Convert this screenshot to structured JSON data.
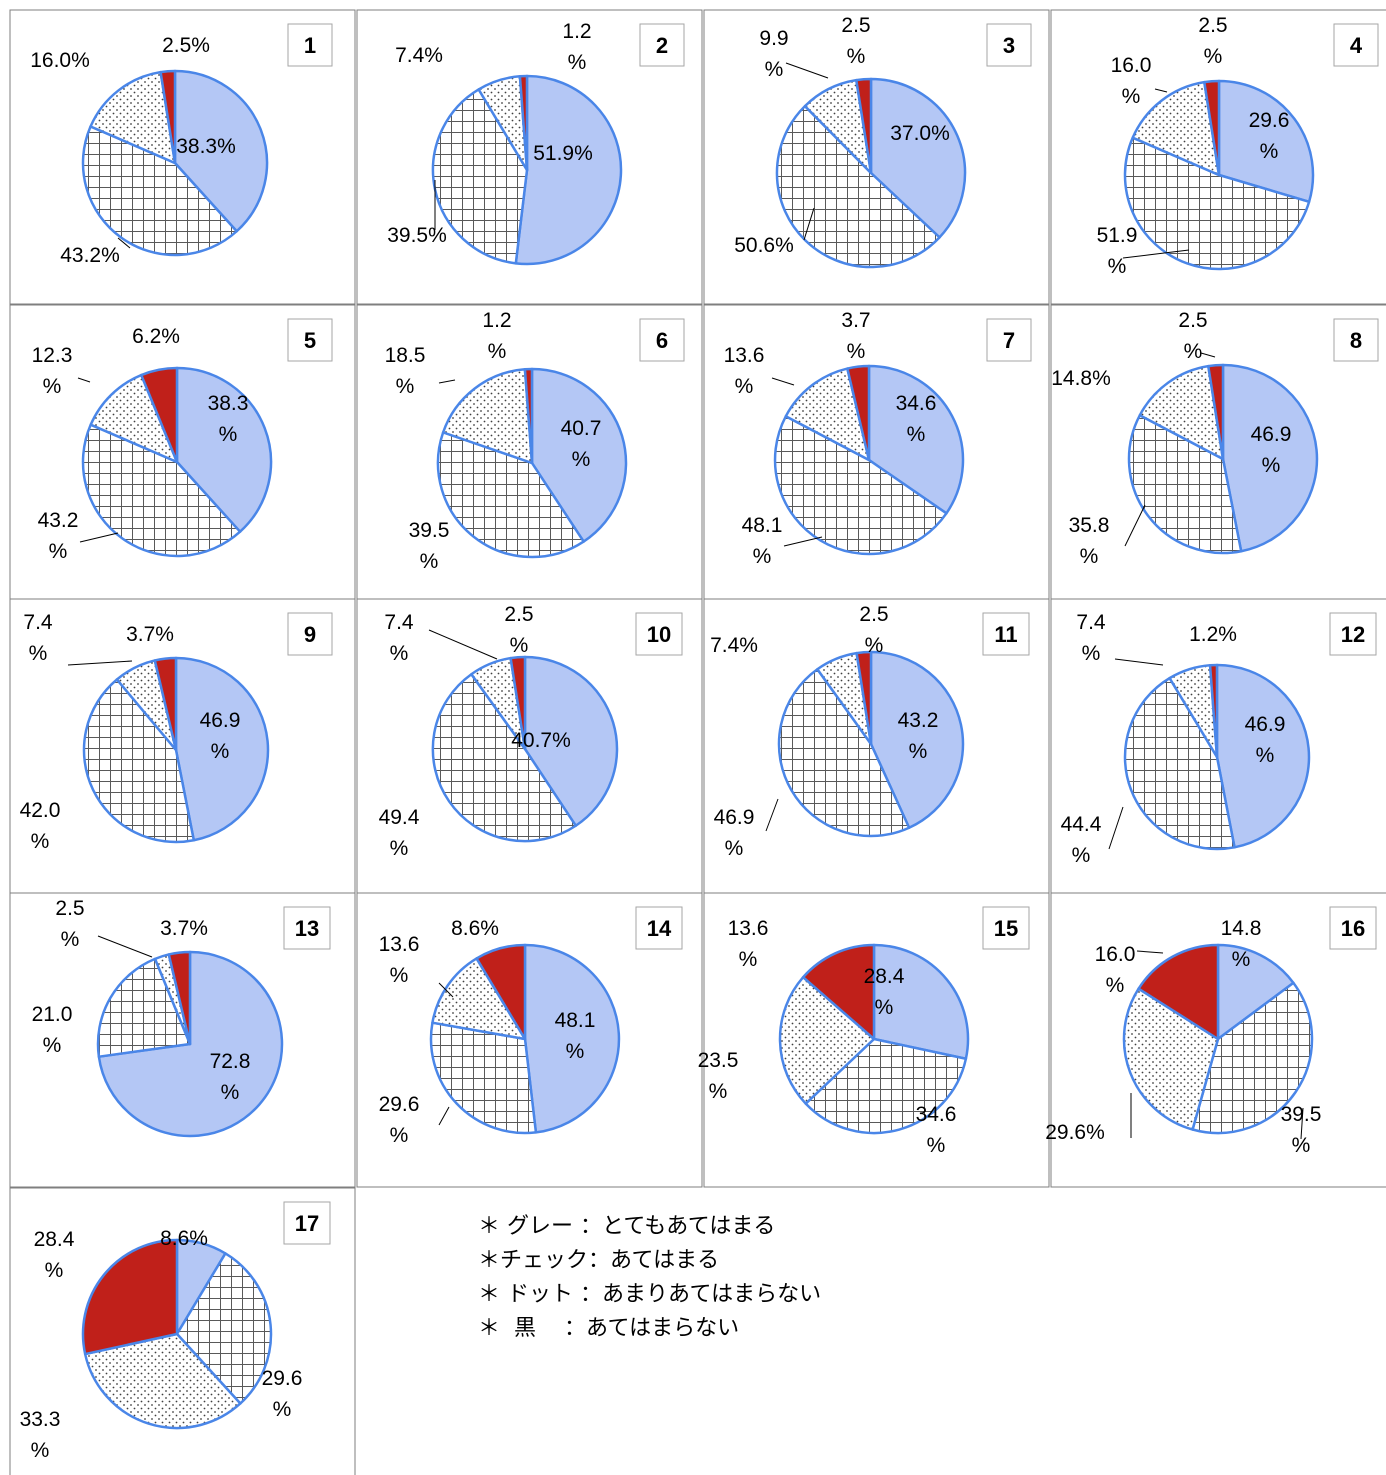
{
  "chart_data": [
    {
      "type": "pie",
      "number": "1",
      "categories": [
        "グレー",
        "チェック",
        "ドット",
        "黒"
      ],
      "values": [
        38.3,
        43.2,
        16.0,
        2.5
      ],
      "labels": [
        {
          "text": "38.3%"
        },
        {
          "text": "43.2%"
        },
        {
          "text": "16.0%"
        },
        {
          "text": "2.5%"
        }
      ]
    },
    {
      "type": "pie",
      "number": "2",
      "categories": [
        "グレー",
        "チェック",
        "ドット",
        "黒"
      ],
      "values": [
        51.9,
        39.5,
        7.4,
        1.2
      ],
      "labels": [
        {
          "text": "51.9%"
        },
        {
          "text": "39.5%"
        },
        {
          "text": "7.4%"
        },
        {
          "text": "1.2\n%"
        }
      ]
    },
    {
      "type": "pie",
      "number": "3",
      "categories": [
        "グレー",
        "チェック",
        "ドット",
        "黒"
      ],
      "values": [
        37.0,
        50.6,
        9.9,
        2.5
      ],
      "labels": [
        {
          "text": "37.0%"
        },
        {
          "text": "50.6%"
        },
        {
          "text": "9.9\n%"
        },
        {
          "text": "2.5\n%"
        }
      ]
    },
    {
      "type": "pie",
      "number": "4",
      "categories": [
        "グレー",
        "チェック",
        "ドット",
        "黒"
      ],
      "values": [
        29.6,
        51.9,
        16.0,
        2.5
      ],
      "labels": [
        {
          "text": "29.6\n%"
        },
        {
          "text": "51.9\n%"
        },
        {
          "text": "16.0\n%"
        },
        {
          "text": "2.5\n%"
        }
      ]
    },
    {
      "type": "pie",
      "number": "5",
      "categories": [
        "グレー",
        "チェック",
        "ドット",
        "黒"
      ],
      "values": [
        38.3,
        43.2,
        12.3,
        6.2
      ],
      "labels": [
        {
          "text": "38.3\n%"
        },
        {
          "text": "43.2\n%"
        },
        {
          "text": "12.3\n%"
        },
        {
          "text": "6.2%"
        }
      ]
    },
    {
      "type": "pie",
      "number": "6",
      "categories": [
        "グレー",
        "チェック",
        "ドット",
        "黒"
      ],
      "values": [
        40.7,
        39.5,
        18.5,
        1.2
      ],
      "labels": [
        {
          "text": "40.7\n%"
        },
        {
          "text": "39.5\n%"
        },
        {
          "text": "18.5\n%"
        },
        {
          "text": "1.2\n%"
        }
      ]
    },
    {
      "type": "pie",
      "number": "7",
      "categories": [
        "グレー",
        "チェック",
        "ドット",
        "黒"
      ],
      "values": [
        34.6,
        48.1,
        13.6,
        3.7
      ],
      "labels": [
        {
          "text": "34.6\n%"
        },
        {
          "text": "48.1\n%"
        },
        {
          "text": "13.6\n%"
        },
        {
          "text": "3.7\n%"
        }
      ]
    },
    {
      "type": "pie",
      "number": "8",
      "categories": [
        "グレー",
        "チェック",
        "ドット",
        "黒"
      ],
      "values": [
        46.9,
        35.8,
        14.8,
        2.5
      ],
      "labels": [
        {
          "text": "46.9\n%"
        },
        {
          "text": "35.8\n%"
        },
        {
          "text": "14.8%"
        },
        {
          "text": "2.5\n%"
        }
      ]
    },
    {
      "type": "pie",
      "number": "9",
      "categories": [
        "グレー",
        "チェック",
        "ドット",
        "黒"
      ],
      "values": [
        46.9,
        42.0,
        7.4,
        3.7
      ],
      "labels": [
        {
          "text": "46.9\n%"
        },
        {
          "text": "42.0\n%"
        },
        {
          "text": "7.4\n%"
        },
        {
          "text": "3.7%"
        }
      ]
    },
    {
      "type": "pie",
      "number": "10",
      "categories": [
        "グレー",
        "チェック",
        "ドット",
        "黒"
      ],
      "values": [
        40.7,
        49.4,
        7.4,
        2.5
      ],
      "labels": [
        {
          "text": "40.7%"
        },
        {
          "text": "49.4\n%"
        },
        {
          "text": "7.4\n%"
        },
        {
          "text": "2.5\n%"
        }
      ]
    },
    {
      "type": "pie",
      "number": "11",
      "categories": [
        "グレー",
        "チェック",
        "ドット",
        "黒"
      ],
      "values": [
        43.2,
        46.9,
        7.4,
        2.5
      ],
      "labels": [
        {
          "text": "43.2\n%"
        },
        {
          "text": "46.9\n%"
        },
        {
          "text": "7.4%"
        },
        {
          "text": "2.5\n%"
        }
      ]
    },
    {
      "type": "pie",
      "number": "12",
      "categories": [
        "グレー",
        "チェック",
        "ドット",
        "黒"
      ],
      "values": [
        46.9,
        44.4,
        7.4,
        1.2
      ],
      "labels": [
        {
          "text": "46.9\n%"
        },
        {
          "text": "44.4\n%"
        },
        {
          "text": "7.4\n%"
        },
        {
          "text": "1.2%"
        }
      ]
    },
    {
      "type": "pie",
      "number": "13",
      "categories": [
        "グレー",
        "チェック",
        "ドット",
        "黒"
      ],
      "values": [
        72.8,
        21.0,
        2.5,
        3.7
      ],
      "labels": [
        {
          "text": "72.8\n%"
        },
        {
          "text": "21.0\n%"
        },
        {
          "text": "2.5\n%"
        },
        {
          "text": "3.7%"
        }
      ]
    },
    {
      "type": "pie",
      "number": "14",
      "categories": [
        "グレー",
        "チェック",
        "ドット",
        "黒"
      ],
      "values": [
        48.1,
        29.6,
        13.6,
        8.6
      ],
      "labels": [
        {
          "text": "48.1\n%"
        },
        {
          "text": "29.6\n%"
        },
        {
          "text": "13.6\n%"
        },
        {
          "text": "8.6%"
        }
      ]
    },
    {
      "type": "pie",
      "number": "15",
      "categories": [
        "グレー",
        "チェック",
        "ドット",
        "黒"
      ],
      "values": [
        28.4,
        34.6,
        23.5,
        13.6
      ],
      "labels": [
        {
          "text": "28.4\n%"
        },
        {
          "text": "34.6\n%"
        },
        {
          "text": "23.5\n%"
        },
        {
          "text": "13.6\n%"
        }
      ]
    },
    {
      "type": "pie",
      "number": "16",
      "categories": [
        "グレー",
        "チェック",
        "ドット",
        "黒"
      ],
      "values": [
        14.8,
        39.5,
        29.6,
        16.0
      ],
      "labels": [
        {
          "text": "14.8\n%"
        },
        {
          "text": "39.5\n%"
        },
        {
          "text": "29.6%"
        },
        {
          "text": "16.0\n%"
        }
      ]
    },
    {
      "type": "pie",
      "number": "17",
      "categories": [
        "グレー",
        "チェック",
        "ドット",
        "黒"
      ],
      "values": [
        8.6,
        29.6,
        33.3,
        28.4
      ],
      "labels": [
        {
          "text": "8.6%"
        },
        {
          "text": "29.6\n%"
        },
        {
          "text": "33.3\n%"
        },
        {
          "text": "28.4\n%"
        }
      ]
    }
  ],
  "colors": {
    "gray": "#b4c7f5",
    "gray_edge": "#4a86e8",
    "black": "#c0201a",
    "border": "#7f7f7f"
  },
  "legend": [
    "＊ グレー ：とてもあてはまる",
    "＊チェック：あてはまる",
    "＊ ドット ：あまりあてはまらない",
    "＊  黒    ：あてはまらない"
  ]
}
